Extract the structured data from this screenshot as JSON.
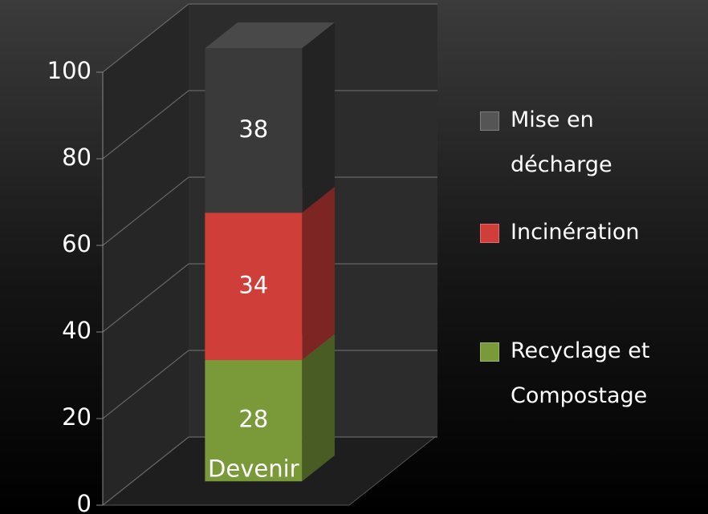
{
  "chart_data": {
    "type": "bar",
    "stacked": true,
    "three_d": true,
    "categories": [
      "Devenir"
    ],
    "series": [
      {
        "name": "Recyclage et Compostage",
        "color": "#7a9a3a",
        "values": [
          28
        ]
      },
      {
        "name": "Incinération",
        "color": "#d03e3a",
        "values": [
          34
        ]
      },
      {
        "name": "Mise en décharge",
        "color": "#3a3a3a",
        "values": [
          38
        ]
      }
    ],
    "ylim": [
      0,
      100
    ],
    "yticks": [
      0,
      20,
      40,
      60,
      80,
      100
    ],
    "grid": true,
    "legend": "right"
  }
}
